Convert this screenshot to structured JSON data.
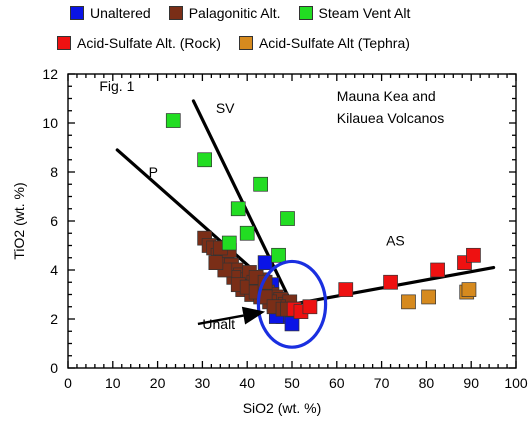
{
  "chart_data": {
    "type": "scatter",
    "title": "",
    "xlabel": "SiO2  (wt. %)",
    "ylabel": "TiO2  (wt. %)",
    "xlim": [
      0,
      100
    ],
    "ylim": [
      0,
      12
    ],
    "xticks": [
      "0",
      "10",
      "20",
      "30",
      "40",
      "50",
      "60",
      "70",
      "80",
      "90",
      "100"
    ],
    "yticks": [
      "0",
      "2",
      "4",
      "6",
      "8",
      "10",
      "12"
    ],
    "grid": false,
    "legend_position": "top",
    "series": [
      {
        "name": "Unaltered",
        "color": "#0a14e6",
        "points": [
          [
            44,
            4.3
          ],
          [
            46,
            2.6
          ],
          [
            47,
            2.3
          ],
          [
            48,
            2.1
          ],
          [
            49,
            2.2
          ],
          [
            50,
            1.8
          ],
          [
            48.5,
            2.5
          ],
          [
            46.5,
            2.1
          ],
          [
            50.5,
            2.4
          ],
          [
            45.5,
            3.4
          ],
          [
            47.5,
            2.7
          ]
        ]
      },
      {
        "name": "Palagonitic Alt.",
        "color": "#7a2e17",
        "points": [
          [
            30.5,
            5.3
          ],
          [
            31.5,
            5.0
          ],
          [
            32.5,
            4.9
          ],
          [
            33.5,
            4.6
          ],
          [
            34.5,
            4.4
          ],
          [
            35.5,
            4.5
          ],
          [
            36.5,
            4.2
          ],
          [
            37.5,
            4.0
          ],
          [
            38.5,
            3.8
          ],
          [
            39.5,
            3.6
          ],
          [
            40.5,
            3.9
          ],
          [
            41.5,
            3.5
          ],
          [
            42.5,
            3.3
          ],
          [
            43.5,
            3.6
          ],
          [
            44.5,
            3.1
          ],
          [
            45.5,
            3.0
          ],
          [
            46.5,
            2.9
          ],
          [
            47.5,
            2.8
          ],
          [
            48.5,
            2.6
          ],
          [
            49.5,
            2.7
          ],
          [
            39,
            3.2
          ],
          [
            41,
            3.0
          ],
          [
            43,
            2.9
          ],
          [
            45,
            2.7
          ],
          [
            47,
            2.5
          ],
          [
            37,
            3.7
          ],
          [
            35,
            4.0
          ],
          [
            33,
            4.3
          ],
          [
            38,
            3.4
          ],
          [
            40,
            3.3
          ],
          [
            42,
            3.1
          ],
          [
            44,
            2.9
          ],
          [
            46,
            2.5
          ],
          [
            48,
            2.4
          ],
          [
            49,
            2.4
          ],
          [
            36,
            4.8
          ],
          [
            34,
            4.9
          ],
          [
            42,
            3.7
          ],
          [
            44,
            3.5
          ]
        ]
      },
      {
        "name": "Steam Vent Alt",
        "color": "#22dd22",
        "points": [
          [
            23.5,
            10.1
          ],
          [
            30.5,
            8.5
          ],
          [
            43,
            7.5
          ],
          [
            38,
            6.5
          ],
          [
            40,
            5.5
          ],
          [
            49,
            6.1
          ],
          [
            36,
            5.1
          ],
          [
            47,
            4.6
          ]
        ]
      },
      {
        "name": "Acid-Sulfate Alt. (Rock)",
        "color": "#ee1111",
        "points": [
          [
            50.5,
            2.4
          ],
          [
            52,
            2.3
          ],
          [
            54,
            2.5
          ],
          [
            62,
            3.2
          ],
          [
            72,
            3.5
          ],
          [
            82.5,
            4.0
          ],
          [
            88.5,
            4.3
          ],
          [
            90.5,
            4.6
          ]
        ]
      },
      {
        "name": "Acid-Sulfate Alt (Tephra)",
        "color": "#d68a1e",
        "points": [
          [
            76,
            2.7
          ],
          [
            80.5,
            2.9
          ],
          [
            89,
            3.1
          ],
          [
            89.5,
            3.2
          ]
        ]
      }
    ],
    "trend_lines": [
      {
        "label": "SV",
        "from": [
          28,
          10.9
        ],
        "to": [
          50,
          2.6
        ]
      },
      {
        "label": "P",
        "from": [
          11,
          8.9
        ],
        "to": [
          50,
          2.6
        ]
      },
      {
        "label": "AS",
        "from": [
          50,
          2.6
        ],
        "to": [
          95,
          4.1
        ]
      }
    ],
    "annotations": [
      {
        "text": "Fig. 1",
        "x": 7,
        "y": 11.3
      },
      {
        "text": "Mauna  Kea and",
        "x": 60,
        "y": 10.9
      },
      {
        "text": "Kilauea Volcanos",
        "x": 60,
        "y": 10.0
      },
      {
        "text": "SV",
        "x": 33,
        "y": 10.4
      },
      {
        "text": "P",
        "x": 18,
        "y": 7.8
      },
      {
        "text": "AS",
        "x": 71,
        "y": 5.0
      },
      {
        "text": "Unalt",
        "x": 30,
        "y": 1.6
      }
    ],
    "arrow": {
      "from": [
        29,
        1.8
      ],
      "to": [
        44,
        2.3
      ]
    },
    "circle": {
      "cx": 50,
      "cy": 2.6,
      "rx": 7.5,
      "ry": 1.75
    }
  }
}
